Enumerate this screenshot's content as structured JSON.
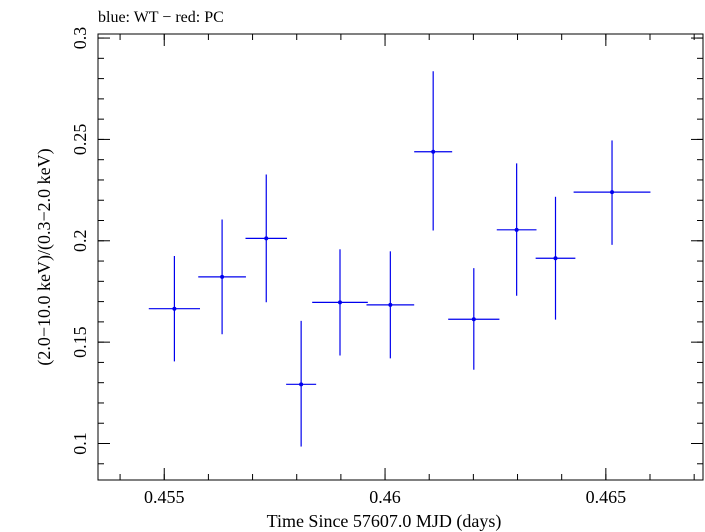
{
  "chart_data": {
    "type": "scatter",
    "title": "blue: WT − red: PC",
    "xlabel": "Time Since 57607.0 MJD (days)",
    "ylabel": "(2.0−10.0 keV)/(0.3−2.0 keV)",
    "xlim": [
      0.4535,
      0.4672
    ],
    "ylim": [
      0.082,
      0.302
    ],
    "x_ticks": [
      {
        "value": 0.455,
        "label": "0.455"
      },
      {
        "value": 0.46,
        "label": "0.46"
      },
      {
        "value": 0.465,
        "label": "0.465"
      }
    ],
    "y_ticks": [
      {
        "value": 0.1,
        "label": "0.1"
      },
      {
        "value": 0.15,
        "label": "0.15"
      },
      {
        "value": 0.2,
        "label": "0.2"
      },
      {
        "value": 0.25,
        "label": "0.25"
      },
      {
        "value": 0.3,
        "label": "0.3"
      }
    ],
    "x_minor_step": 0.001,
    "y_minor_step": 0.01,
    "grid": false,
    "series": [
      {
        "name": "WT",
        "color": "#0000ee",
        "points": [
          {
            "x": 0.45523,
            "xerr": 0.00058,
            "y": 0.1665,
            "y_lo": 0.1405,
            "y_hi": 0.1925
          },
          {
            "x": 0.45631,
            "xerr": 0.00054,
            "y": 0.1822,
            "y_lo": 0.1539,
            "y_hi": 0.2105
          },
          {
            "x": 0.45731,
            "xerr": 0.00047,
            "y": 0.2012,
            "y_lo": 0.1697,
            "y_hi": 0.2327
          },
          {
            "x": 0.4581,
            "xerr": 0.00034,
            "y": 0.1292,
            "y_lo": 0.0985,
            "y_hi": 0.1605
          },
          {
            "x": 0.45898,
            "xerr": 0.00063,
            "y": 0.1696,
            "y_lo": 0.1434,
            "y_hi": 0.1958
          },
          {
            "x": 0.46012,
            "xerr": 0.00054,
            "y": 0.1684,
            "y_lo": 0.142,
            "y_hi": 0.1948
          },
          {
            "x": 0.46109,
            "xerr": 0.00043,
            "y": 0.2439,
            "y_lo": 0.2051,
            "y_hi": 0.2836
          },
          {
            "x": 0.46201,
            "xerr": 0.00058,
            "y": 0.1613,
            "y_lo": 0.1364,
            "y_hi": 0.1865
          },
          {
            "x": 0.46298,
            "xerr": 0.00045,
            "y": 0.2054,
            "y_lo": 0.1729,
            "y_hi": 0.2382
          },
          {
            "x": 0.46386,
            "xerr": 0.00045,
            "y": 0.1914,
            "y_lo": 0.1611,
            "y_hi": 0.2217
          },
          {
            "x": 0.46514,
            "xerr": 0.00087,
            "y": 0.224,
            "y_lo": 0.198,
            "y_hi": 0.2495
          }
        ]
      }
    ]
  }
}
